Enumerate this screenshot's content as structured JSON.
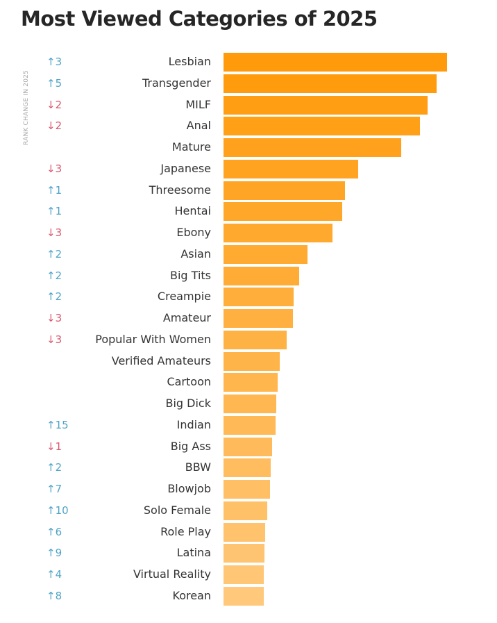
{
  "chart_data": {
    "type": "bar",
    "orientation": "horizontal",
    "title": "Most Viewed Categories of 2025",
    "side_label": "RANK CHANGE IN 2025",
    "xlabel": "",
    "ylabel": "",
    "value_note": "relative bar lengths (no axis shown)",
    "categories": [
      "Lesbian",
      "Transgender",
      "MILF",
      "Anal",
      "Mature",
      "Japanese",
      "Threesome",
      "Hentai",
      "Ebony",
      "Asian",
      "Big Tits",
      "Creampie",
      "Amateur",
      "Popular With Women",
      "Verified Amateurs",
      "Cartoon",
      "Big Dick",
      "Indian",
      "Big Ass",
      "BBW",
      "Blowjob",
      "Solo Female",
      "Role Play",
      "Latina",
      "Virtual Reality",
      "Korean"
    ],
    "values": [
      100,
      95.3,
      91.3,
      87.9,
      79.5,
      60.2,
      54.3,
      53.1,
      48.8,
      37.6,
      33.9,
      31.4,
      31.1,
      28.3,
      25.2,
      24.2,
      23.6,
      23.3,
      21.7,
      21.1,
      20.8,
      19.6,
      18.6,
      18.3,
      18.0,
      18.0
    ],
    "rank_change": [
      "↑3",
      "↑5",
      "↓2",
      "↓2",
      "",
      "↓3",
      "↑1",
      "↑1",
      "↓3",
      "↑2",
      "↑2",
      "↑2",
      "↓3",
      "↓3",
      "",
      "",
      "",
      "↑15",
      "↓1",
      "↑2",
      "↑7",
      "↑10",
      "↑6",
      "↑9",
      "↑4",
      "↑8"
    ],
    "colors": {
      "bar_top": "#ff9a0a",
      "bar_bottom": "#ffc87a",
      "up": "#4fa3c7",
      "down": "#d8576f"
    }
  }
}
